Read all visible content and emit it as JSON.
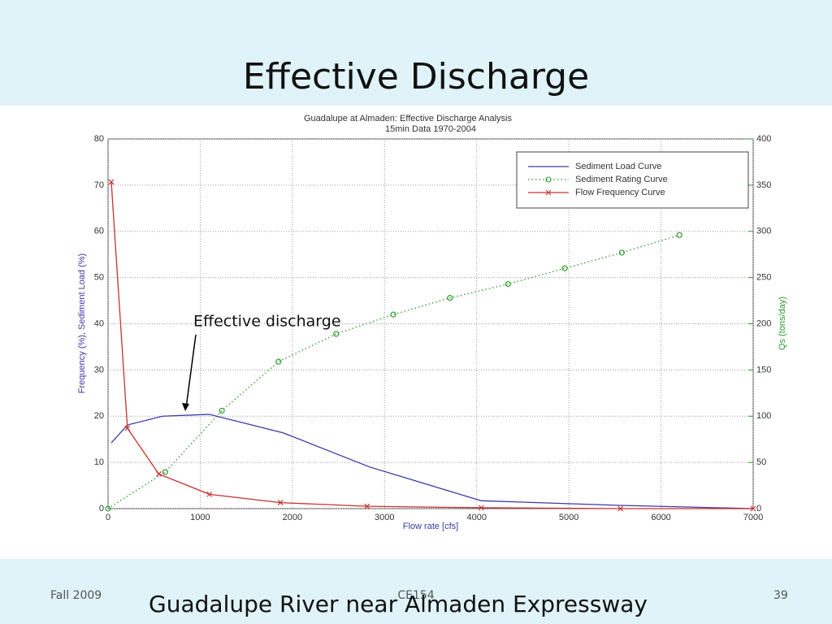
{
  "slide": {
    "title": "Effective Discharge",
    "footer_left": "Fall 2009",
    "footer_center": "CE154",
    "caption": "Guadalupe River near Almaden Expressway",
    "page_number": "39"
  },
  "chart_data": {
    "type": "line",
    "title": "Guadalupe at Almaden: Effective Discharge Analysis",
    "subtitle": "15min Data 1970-2004",
    "xlabel": "Flow rate [cfs]",
    "ylabel": "Frequency (%), Sediment Load (%)",
    "y2label": "Qs (tons/day)",
    "annotation": "Effective discharge",
    "xlim": [
      0,
      7000
    ],
    "xticks": [
      0,
      1000,
      2000,
      3000,
      4000,
      5000,
      6000,
      7000
    ],
    "ylim": [
      0,
      80
    ],
    "yticks": [
      0,
      10,
      20,
      30,
      40,
      50,
      60,
      70,
      80
    ],
    "y2lim": [
      0,
      400
    ],
    "y2ticks": [
      0,
      50,
      100,
      150,
      200,
      250,
      300,
      350,
      400
    ],
    "grid": true,
    "legend": "upper right",
    "series": [
      {
        "name": "Sediment Load Curve",
        "color": "#3a3aa8",
        "linestyle": "solid",
        "marker": "none",
        "x": [
          35,
          210,
          590,
          1100,
          1900,
          2840,
          4050,
          5560,
          7000
        ],
        "values": [
          14.2,
          18.1,
          20,
          20.4,
          16.4,
          9,
          1.7,
          0.7,
          0
        ]
      },
      {
        "name": "Sediment Rating Curve",
        "color": "#2e9a2e",
        "linestyle": "dotted",
        "marker": "o",
        "axis": "y2",
        "x": [
          0,
          620,
          1235,
          1850,
          2475,
          3095,
          3710,
          4340,
          4955,
          5575,
          6200
        ],
        "values": [
          0,
          39.6,
          106,
          159,
          189,
          210,
          228,
          243,
          260,
          277,
          296
        ]
      },
      {
        "name": "Flow Frequency Curve",
        "color": "#c83030",
        "linestyle": "solid",
        "marker": "x",
        "x": [
          35,
          210,
          550,
          1100,
          1870,
          2810,
          4050,
          5560,
          7000
        ],
        "values": [
          70.7,
          17.4,
          7.5,
          3.1,
          1.3,
          0.5,
          0.2,
          0,
          0
        ]
      }
    ]
  }
}
